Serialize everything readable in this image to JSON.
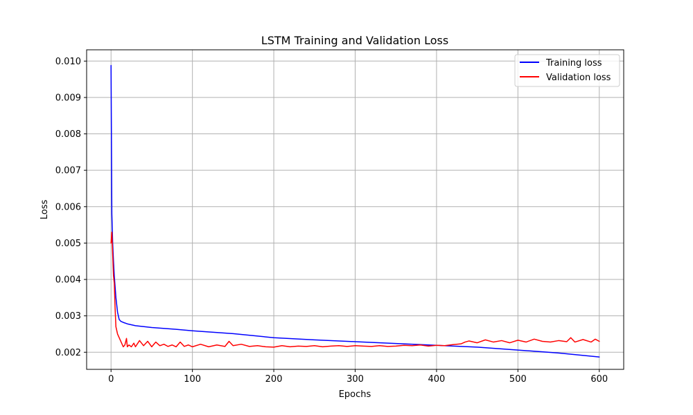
{
  "chart_data": {
    "type": "line",
    "title": "LSTM Training and Validation Loss",
    "xlabel": "Epochs",
    "ylabel": "Loss",
    "xlim": [
      -30,
      630
    ],
    "ylim": [
      0.00153,
      0.01031
    ],
    "xticks": [
      0,
      100,
      200,
      300,
      400,
      500,
      600
    ],
    "xtick_labels": [
      "0",
      "100",
      "200",
      "300",
      "400",
      "500",
      "600"
    ],
    "yticks": [
      0.002,
      0.003,
      0.004,
      0.005,
      0.006,
      0.007,
      0.008,
      0.009,
      0.01
    ],
    "ytick_labels": [
      "0.002",
      "0.003",
      "0.004",
      "0.005",
      "0.006",
      "0.007",
      "0.008",
      "0.009",
      "0.010"
    ],
    "grid": true,
    "legend_position": "top-right",
    "series": [
      {
        "name": "Training loss",
        "color": "#0000ff",
        "x": [
          0,
          1,
          2,
          3,
          4,
          5,
          6,
          7,
          8,
          10,
          12,
          15,
          20,
          30,
          50,
          80,
          100,
          150,
          200,
          250,
          300,
          350,
          400,
          450,
          500,
          550,
          600
        ],
        "y": [
          0.00988,
          0.0058,
          0.005,
          0.0045,
          0.0041,
          0.0038,
          0.0035,
          0.0033,
          0.0031,
          0.0029,
          0.00285,
          0.00282,
          0.00278,
          0.00273,
          0.00268,
          0.00263,
          0.00259,
          0.00251,
          0.0024,
          0.00234,
          0.00229,
          0.00224,
          0.00219,
          0.00214,
          0.00206,
          0.00198,
          0.00187
        ]
      },
      {
        "name": "Validation loss",
        "color": "#ff0000",
        "x": [
          0,
          1,
          2,
          3,
          4,
          5,
          6,
          7,
          8,
          10,
          12,
          15,
          17,
          19,
          20,
          22,
          25,
          28,
          30,
          35,
          40,
          45,
          50,
          55,
          60,
          65,
          70,
          75,
          80,
          85,
          90,
          95,
          100,
          110,
          120,
          130,
          140,
          145,
          150,
          160,
          170,
          180,
          190,
          200,
          210,
          220,
          230,
          240,
          250,
          260,
          270,
          280,
          290,
          300,
          310,
          320,
          330,
          340,
          350,
          360,
          370,
          380,
          390,
          400,
          410,
          420,
          430,
          435,
          440,
          450,
          460,
          470,
          480,
          490,
          500,
          510,
          520,
          530,
          540,
          550,
          560,
          565,
          570,
          580,
          590,
          595,
          600
        ],
        "y": [
          0.005,
          0.0053,
          0.0047,
          0.0041,
          0.0039,
          0.0032,
          0.0027,
          0.0026,
          0.0025,
          0.0024,
          0.0023,
          0.00215,
          0.0022,
          0.00238,
          0.00215,
          0.0022,
          0.00215,
          0.00225,
          0.00215,
          0.00232,
          0.00218,
          0.0023,
          0.00215,
          0.00228,
          0.00218,
          0.00222,
          0.00216,
          0.0022,
          0.00215,
          0.00228,
          0.00216,
          0.0022,
          0.00215,
          0.00222,
          0.00215,
          0.0022,
          0.00216,
          0.0023,
          0.00218,
          0.00222,
          0.00216,
          0.00218,
          0.00215,
          0.00214,
          0.00218,
          0.00215,
          0.00217,
          0.00216,
          0.00218,
          0.00215,
          0.00217,
          0.00218,
          0.00216,
          0.00218,
          0.00217,
          0.00216,
          0.00218,
          0.00216,
          0.00217,
          0.00219,
          0.00218,
          0.0022,
          0.00217,
          0.00219,
          0.00218,
          0.00221,
          0.00223,
          0.00228,
          0.00231,
          0.00226,
          0.00234,
          0.00228,
          0.00232,
          0.00226,
          0.00233,
          0.00228,
          0.00236,
          0.0023,
          0.00228,
          0.00232,
          0.00229,
          0.0024,
          0.00228,
          0.00235,
          0.00228,
          0.00236,
          0.0023
        ]
      }
    ]
  }
}
